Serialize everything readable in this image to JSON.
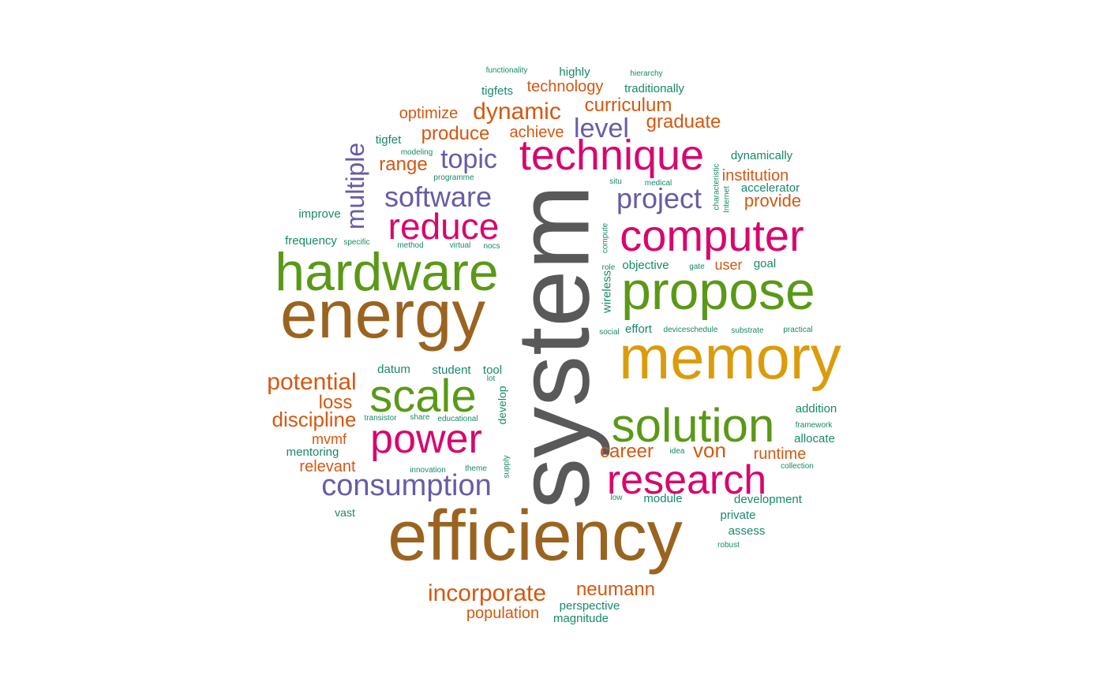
{
  "palette": {
    "gray": "#595959",
    "brown": "#9A6420",
    "gold": "#DB9C0B",
    "magenta": "#D8066E",
    "green": "#5A9917",
    "purple": "#6A5BA6",
    "orange": "#D45810",
    "teal": "#17896B"
  },
  "words": [
    {
      "text": "system",
      "color": "gray"
    },
    {
      "text": "efficiency",
      "color": "brown"
    },
    {
      "text": "energy",
      "color": "brown"
    },
    {
      "text": "memory",
      "color": "gold"
    },
    {
      "text": "propose",
      "color": "green"
    },
    {
      "text": "hardware",
      "color": "green"
    },
    {
      "text": "computer",
      "color": "magenta"
    },
    {
      "text": "solution",
      "color": "green"
    },
    {
      "text": "technique",
      "color": "magenta"
    },
    {
      "text": "research",
      "color": "magenta"
    },
    {
      "text": "power",
      "color": "magenta"
    },
    {
      "text": "scale",
      "color": "green"
    },
    {
      "text": "reduce",
      "color": "magenta"
    },
    {
      "text": "consumption",
      "color": "purple"
    },
    {
      "text": "software",
      "color": "purple"
    },
    {
      "text": "project",
      "color": "purple"
    },
    {
      "text": "multiple",
      "color": "purple"
    },
    {
      "text": "topic",
      "color": "purple"
    },
    {
      "text": "level",
      "color": "purple"
    },
    {
      "text": "dynamic",
      "color": "orange"
    },
    {
      "text": "incorporate",
      "color": "orange"
    },
    {
      "text": "potential",
      "color": "orange"
    },
    {
      "text": "discipline",
      "color": "orange"
    },
    {
      "text": "neumann",
      "color": "orange"
    },
    {
      "text": "curriculum",
      "color": "orange"
    },
    {
      "text": "produce",
      "color": "orange"
    },
    {
      "text": "graduate",
      "color": "orange"
    },
    {
      "text": "technology",
      "color": "orange"
    },
    {
      "text": "range",
      "color": "orange"
    },
    {
      "text": "loss",
      "color": "orange"
    },
    {
      "text": "career",
      "color": "orange"
    },
    {
      "text": "von",
      "color": "orange"
    },
    {
      "text": "optimize",
      "color": "orange"
    },
    {
      "text": "achieve",
      "color": "orange"
    },
    {
      "text": "institution",
      "color": "orange"
    },
    {
      "text": "provide",
      "color": "orange"
    },
    {
      "text": "runtime",
      "color": "orange"
    },
    {
      "text": "relevant",
      "color": "orange"
    },
    {
      "text": "population",
      "color": "orange"
    },
    {
      "text": "mvmf",
      "color": "orange"
    },
    {
      "text": "user",
      "color": "orange"
    },
    {
      "text": "highly",
      "color": "teal"
    },
    {
      "text": "traditionally",
      "color": "teal"
    },
    {
      "text": "tigfets",
      "color": "teal"
    },
    {
      "text": "tigfet",
      "color": "teal"
    },
    {
      "text": "dynamically",
      "color": "teal"
    },
    {
      "text": "accelerator",
      "color": "teal"
    },
    {
      "text": "improve",
      "color": "teal"
    },
    {
      "text": "frequency",
      "color": "teal"
    },
    {
      "text": "objective",
      "color": "teal"
    },
    {
      "text": "goal",
      "color": "teal"
    },
    {
      "text": "wireless",
      "color": "teal"
    },
    {
      "text": "effort",
      "color": "teal"
    },
    {
      "text": "datum",
      "color": "teal"
    },
    {
      "text": "student",
      "color": "teal"
    },
    {
      "text": "tool",
      "color": "teal"
    },
    {
      "text": "develop",
      "color": "teal"
    },
    {
      "text": "addition",
      "color": "teal"
    },
    {
      "text": "allocate",
      "color": "teal"
    },
    {
      "text": "mentoring",
      "color": "teal"
    },
    {
      "text": "development",
      "color": "teal"
    },
    {
      "text": "module",
      "color": "teal"
    },
    {
      "text": "private",
      "color": "teal"
    },
    {
      "text": "assess",
      "color": "teal"
    },
    {
      "text": "vast",
      "color": "teal"
    },
    {
      "text": "perspective",
      "color": "teal"
    },
    {
      "text": "magnitude",
      "color": "teal"
    },
    {
      "text": "functionality",
      "color": "teal"
    },
    {
      "text": "hierarchy",
      "color": "teal"
    },
    {
      "text": "modeling",
      "color": "teal"
    },
    {
      "text": "programme",
      "color": "teal"
    },
    {
      "text": "characteristic",
      "color": "teal"
    },
    {
      "text": "Internet",
      "color": "teal"
    },
    {
      "text": "situ",
      "color": "teal"
    },
    {
      "text": "medical",
      "color": "teal"
    },
    {
      "text": "specific",
      "color": "teal"
    },
    {
      "text": "method",
      "color": "teal"
    },
    {
      "text": "virtual",
      "color": "teal"
    },
    {
      "text": "nocs",
      "color": "teal"
    },
    {
      "text": "compute",
      "color": "teal"
    },
    {
      "text": "role",
      "color": "teal"
    },
    {
      "text": "gate",
      "color": "teal"
    },
    {
      "text": "social",
      "color": "teal"
    },
    {
      "text": "deviceschedule",
      "color": "teal"
    },
    {
      "text": "substrate",
      "color": "teal"
    },
    {
      "text": "practical",
      "color": "teal"
    },
    {
      "text": "lot",
      "color": "teal"
    },
    {
      "text": "transistor",
      "color": "teal"
    },
    {
      "text": "share",
      "color": "teal"
    },
    {
      "text": "educational",
      "color": "teal"
    },
    {
      "text": "framework",
      "color": "teal"
    },
    {
      "text": "idea",
      "color": "teal"
    },
    {
      "text": "collection",
      "color": "teal"
    },
    {
      "text": "innovation",
      "color": "teal"
    },
    {
      "text": "theme",
      "color": "teal"
    },
    {
      "text": "supply",
      "color": "teal"
    },
    {
      "text": "low",
      "color": "teal"
    },
    {
      "text": "robust",
      "color": "teal"
    }
  ]
}
